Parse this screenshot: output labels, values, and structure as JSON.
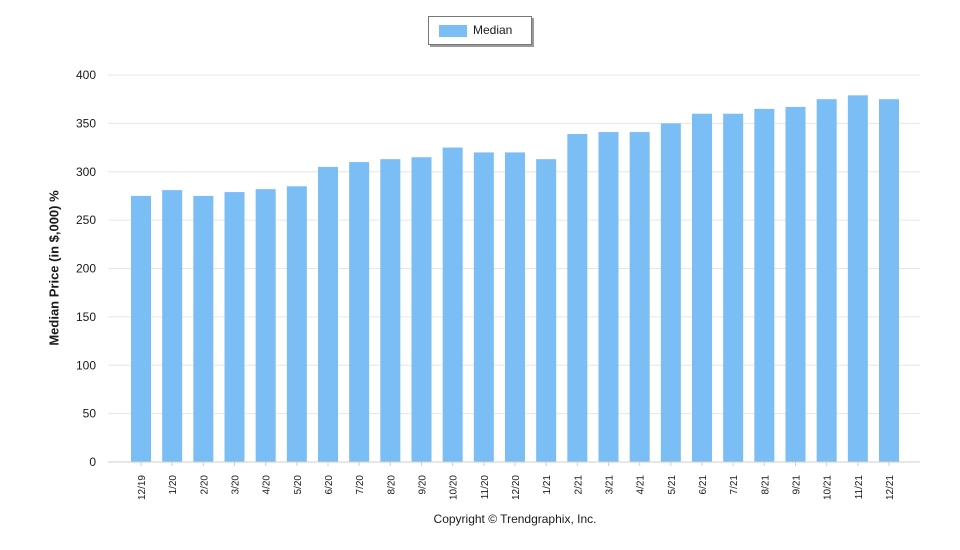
{
  "chart_data": {
    "type": "bar",
    "title": "",
    "xlabel": "",
    "ylabel": "Median Price (in $,000) %",
    "ylim": [
      0,
      400
    ],
    "yticks": [
      0,
      50,
      100,
      150,
      200,
      250,
      300,
      350,
      400
    ],
    "grid": true,
    "legend_position": "top-center",
    "categories": [
      "12/19",
      "1/20",
      "2/20",
      "3/20",
      "4/20",
      "5/20",
      "6/20",
      "7/20",
      "8/20",
      "9/20",
      "10/20",
      "11/20",
      "12/20",
      "1/21",
      "2/21",
      "3/21",
      "4/21",
      "5/21",
      "6/21",
      "7/21",
      "8/21",
      "9/21",
      "10/21",
      "11/21",
      "12/21"
    ],
    "series": [
      {
        "name": "Median",
        "color": "#7bbdf5",
        "values": [
          275,
          281,
          275,
          279,
          282,
          285,
          305,
          310,
          313,
          315,
          325,
          320,
          320,
          313,
          339,
          341,
          341,
          350,
          360,
          360,
          365,
          367,
          375,
          379,
          375
        ]
      }
    ]
  },
  "footer": {
    "copyright": "Copyright © Trendgraphix, Inc."
  }
}
